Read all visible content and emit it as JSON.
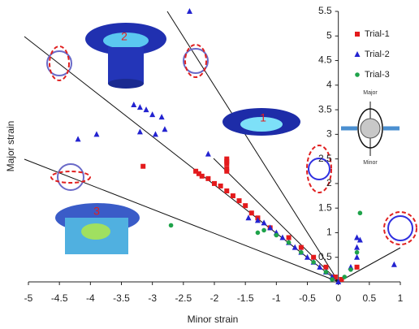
{
  "chart_data": {
    "type": "scatter",
    "x_label": "Minor strain",
    "y_label": "Major strain",
    "xlim": [
      -5,
      1
    ],
    "ylim": [
      0,
      5.5
    ],
    "xticks": [
      -5,
      -4.5,
      -4,
      -3.5,
      -3,
      -2.5,
      -2,
      -1.5,
      -1,
      -0.5,
      0,
      0.5,
      1
    ],
    "yticks": [
      0.5,
      1,
      1.5,
      2,
      2.5,
      3,
      3.5,
      4,
      4.5,
      5,
      5.5
    ],
    "legend": "upper right",
    "annotations": [
      "1",
      "2",
      "3",
      "Major",
      "Minor"
    ],
    "series": [
      {
        "name": "Trial-1",
        "color": "#e31a1c",
        "marker": "square",
        "x": [
          -3.15,
          -1.8,
          -1.8,
          -1.8,
          -1.8,
          -1.8,
          -2.3,
          -2.25,
          -2.2,
          -2.1,
          -2.0,
          -1.9,
          -1.8,
          -1.7,
          -1.6,
          -1.5,
          -1.4,
          -1.3,
          -1.1,
          -0.8,
          -0.6,
          -0.4,
          -0.2,
          -0.05,
          0.05,
          0.3
        ],
        "values": [
          2.35,
          2.5,
          2.45,
          2.4,
          2.3,
          2.25,
          2.25,
          2.2,
          2.15,
          2.1,
          2.0,
          1.95,
          1.85,
          1.75,
          1.65,
          1.55,
          1.4,
          1.3,
          1.1,
          0.9,
          0.7,
          0.5,
          0.3,
          0.1,
          0.05,
          0.3
        ]
      },
      {
        "name": "Trial-2",
        "color": "#2323d0",
        "marker": "triangle",
        "x": [
          -2.4,
          -3.3,
          -3.2,
          -3.1,
          -3.0,
          -2.85,
          -3.2,
          -4.2,
          -3.9,
          -2.95,
          -2.8,
          -2.1,
          -1.45,
          -1.3,
          -1.2,
          -1.1,
          -1.0,
          -0.9,
          -0.8,
          -0.7,
          -0.6,
          -0.5,
          -0.4,
          -0.3,
          -0.2,
          -0.1,
          0,
          0.3,
          0.35,
          0.3,
          0.3,
          0.2,
          0.9
        ],
        "values": [
          5.5,
          3.6,
          3.55,
          3.5,
          3.4,
          3.35,
          3.05,
          2.9,
          3.0,
          3.0,
          3.1,
          2.6,
          1.3,
          1.25,
          1.2,
          1.1,
          1.0,
          0.9,
          0.8,
          0.7,
          0.6,
          0.5,
          0.4,
          0.3,
          0.2,
          0.1,
          0,
          0.9,
          0.85,
          0.7,
          0.5,
          0.3,
          0.35
        ]
      },
      {
        "name": "Trial-3",
        "color": "#1fa34a",
        "marker": "circle",
        "x": [
          -2.7,
          -1.3,
          -1.2,
          -1.0,
          -0.8,
          -0.6,
          -0.4,
          -0.2,
          -0.1,
          0.35,
          0.3,
          0.2,
          0.1
        ],
        "values": [
          1.15,
          1.0,
          1.05,
          0.95,
          0.8,
          0.6,
          0.4,
          0.2,
          0.05,
          1.4,
          0.6,
          0.25,
          0.1
        ]
      }
    ]
  }
}
